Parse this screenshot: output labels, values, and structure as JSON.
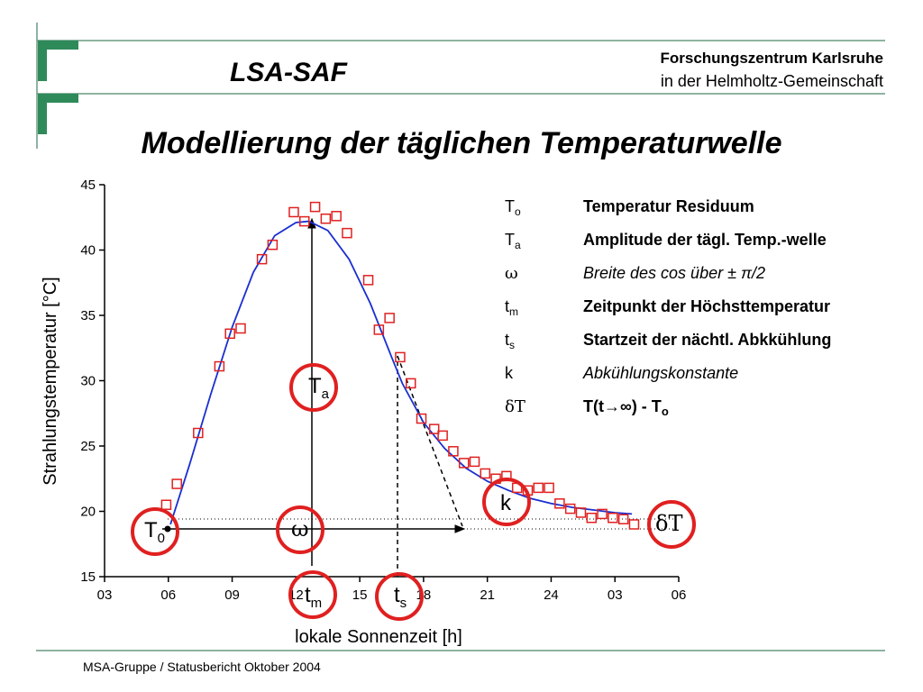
{
  "header": {
    "logo_text": "LSA-SAF",
    "org": "Forschungszentrum Karlsruhe",
    "org_sub": "in der Helmholtz-Gemeinschaft"
  },
  "title": "Modellierung der täglichen Temperaturwelle",
  "chart_data": {
    "type": "scatter",
    "xlabel": "lokale Sonnenzeit [h]",
    "ylabel": "Strahlungstemperatur [°C]",
    "xlim": [
      3,
      30
    ],
    "ylim": [
      15,
      45
    ],
    "xticks": [
      {
        "value": 3,
        "label": "03"
      },
      {
        "value": 6,
        "label": "06"
      },
      {
        "value": 9,
        "label": "09"
      },
      12,
      15,
      18,
      21,
      24,
      {
        "value": 27,
        "label": "03"
      },
      {
        "value": 30,
        "label": "06"
      }
    ],
    "yticks": [
      15,
      20,
      25,
      30,
      35,
      40,
      45
    ],
    "points": {
      "color": "#e02020",
      "x": [
        5.9,
        6.4,
        7.4,
        8.4,
        8.9,
        9.4,
        10.4,
        10.9,
        11.9,
        12.4,
        12.9,
        13.4,
        13.9,
        14.4,
        15.4,
        15.9,
        16.4,
        16.9,
        17.4,
        17.9,
        18.5,
        18.9,
        19.4,
        19.9,
        20.4,
        20.9,
        21.4,
        21.9,
        22.4,
        22.9,
        23.4,
        23.9,
        24.4,
        24.9,
        25.4,
        25.9,
        26.4,
        26.9,
        27.4,
        27.9
      ],
      "values": [
        20.5,
        22.1,
        26.0,
        31.1,
        33.6,
        34.0,
        39.3,
        40.4,
        42.9,
        42.2,
        43.3,
        42.4,
        42.6,
        41.3,
        37.7,
        33.9,
        34.8,
        31.8,
        29.8,
        27.1,
        26.3,
        25.8,
        24.6,
        23.7,
        23.8,
        22.9,
        22.5,
        22.7,
        21.8,
        21.6,
        21.8,
        21.8,
        20.6,
        20.2,
        19.9,
        19.5,
        19.8,
        19.5,
        19.4,
        19.0
      ]
    },
    "fit": {
      "color": "#1a2fd0",
      "x": [
        6.1,
        7,
        8,
        9,
        10,
        11,
        12,
        12.6,
        13.5,
        14.5,
        15.5,
        16.5,
        17,
        18,
        19,
        20,
        21,
        22,
        23,
        24,
        25,
        26,
        27,
        27.8
      ],
      "values": [
        19.0,
        23.6,
        29.0,
        34.1,
        38.3,
        41.1,
        42.1,
        42.2,
        41.5,
        39.3,
        35.9,
        31.8,
        29.8,
        26.8,
        24.8,
        23.3,
        22.3,
        21.6,
        21.0,
        20.6,
        20.3,
        20.1,
        19.9,
        19.8
      ]
    },
    "annotations": [
      {
        "label": "T",
        "sub": "0"
      },
      {
        "label": "T",
        "sub": "a"
      },
      {
        "label": "ω"
      },
      {
        "label": "t",
        "sub": "m"
      },
      {
        "label": "t",
        "sub": "s"
      },
      {
        "label": "k"
      },
      {
        "label": "δT"
      }
    ]
  },
  "legend": [
    {
      "symbol": "T",
      "sub": "o",
      "text": "Temperatur Residuum",
      "italic": false
    },
    {
      "symbol": "T",
      "sub": "a",
      "text": "Amplitude der tägl. Temp.-welle",
      "italic": false
    },
    {
      "symbol": "ω",
      "text": "Breite des cos über  ± π/2",
      "italic": true
    },
    {
      "symbol": "t",
      "sub": "m",
      "text": "Zeitpunkt der Höchsttemperatur",
      "italic": false
    },
    {
      "symbol": "t",
      "sub": "s",
      "text": "Startzeit der nächtl. Abkkühlung",
      "italic": false
    },
    {
      "symbol": "k",
      "text": "Abkühlungskonstante",
      "italic": true
    },
    {
      "symbol": "δT",
      "text": "T(t→∞) - T",
      "text_sub": "o",
      "italic": false
    }
  ],
  "footer": "MSA-Gruppe / Statusbericht Oktober 2004"
}
